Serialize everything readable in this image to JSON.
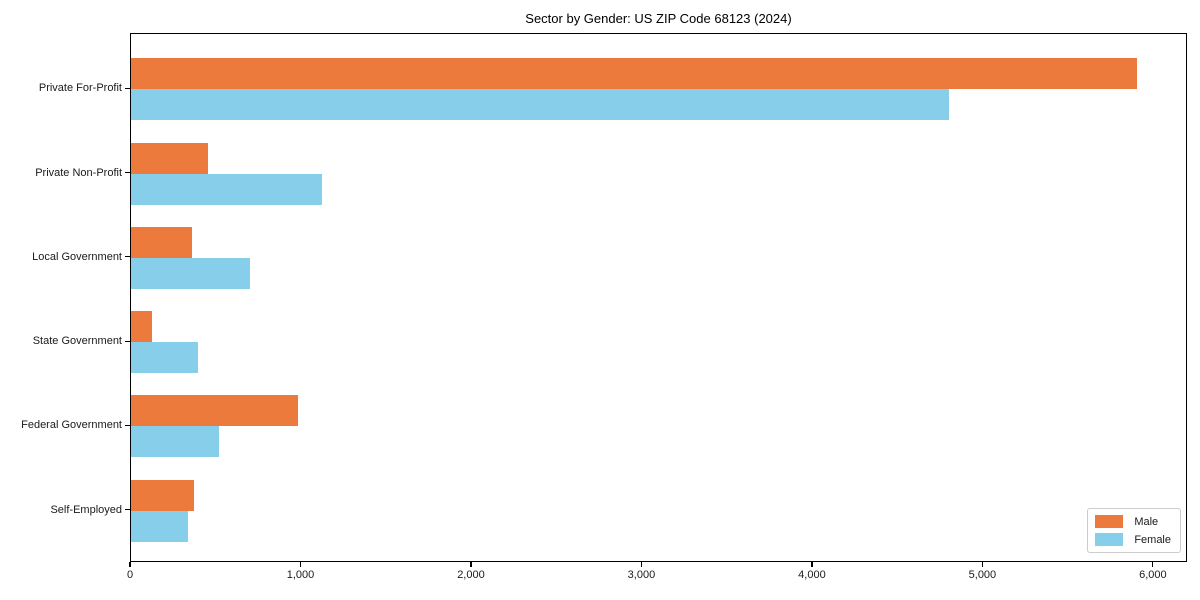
{
  "chart_data": {
    "type": "bar",
    "orientation": "horizontal",
    "title": "Sector by Gender: US ZIP Code 68123 (2024)",
    "categories": [
      "Private For-Profit",
      "Private Non-Profit",
      "Local Government",
      "State Government",
      "Federal Government",
      "Self-Employed"
    ],
    "series": [
      {
        "name": "Male",
        "color": "#ec7a3d",
        "values": [
          5900,
          450,
          360,
          125,
          980,
          370
        ]
      },
      {
        "name": "Female",
        "color": "#87ceeb",
        "values": [
          4800,
          1120,
          700,
          395,
          515,
          335
        ]
      }
    ],
    "xlabel": "",
    "ylabel": "",
    "xlim": [
      0,
      6200
    ],
    "x_ticks": [
      0,
      1000,
      2000,
      3000,
      4000,
      5000,
      6000
    ],
    "x_tick_labels": [
      "0",
      "1,000",
      "2,000",
      "3,000",
      "4,000",
      "5,000",
      "6,000"
    ],
    "grid": false,
    "legend_position": "lower right",
    "background_color": "#ffffff",
    "spine_color": "#000000"
  }
}
